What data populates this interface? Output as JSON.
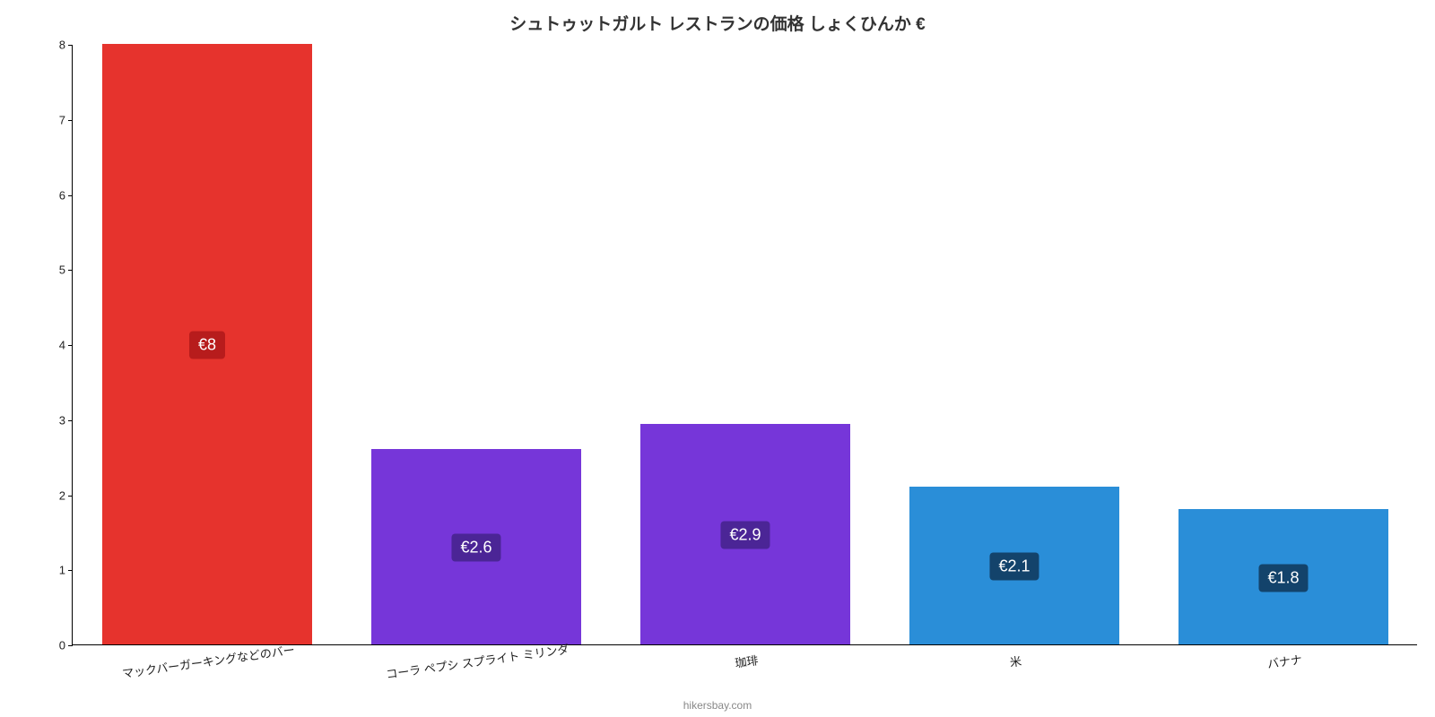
{
  "chart": {
    "type": "bar",
    "title": "シュトゥットガルト レストランの価格 しょくひんか €",
    "title_fontsize": 19,
    "title_color": "#333333",
    "background_color": "#ffffff",
    "axis_color": "#000000",
    "ylim": [
      0,
      8
    ],
    "ytick_step": 1,
    "yticks": [
      0,
      1,
      2,
      3,
      4,
      5,
      6,
      7,
      8
    ],
    "bar_width_ratio": 0.78,
    "categories": [
      "マックバーガーキングなどのバー",
      "コーラ ペプシ スプライト ミリンダ",
      "珈琲",
      "米",
      "バナナ"
    ],
    "values": [
      8,
      2.6,
      2.94,
      2.1,
      1.8
    ],
    "value_labels": [
      "€8",
      "€2.6",
      "€2.9",
      "€2.1",
      "€1.8"
    ],
    "bar_colors": [
      "#e6332d",
      "#7636d9",
      "#7636d9",
      "#2a8ed8",
      "#2a8ed8"
    ],
    "value_label_bg": [
      "#b71c1c",
      "#4b2596",
      "#4b2596",
      "#13436b",
      "#13436b"
    ],
    "value_label_color": "#ffffff",
    "value_label_fontsize": 18,
    "xlabel_fontsize": 13,
    "xlabel_rotate_deg": -8,
    "attribution": "hikersbay.com",
    "attribution_color": "#888888"
  }
}
